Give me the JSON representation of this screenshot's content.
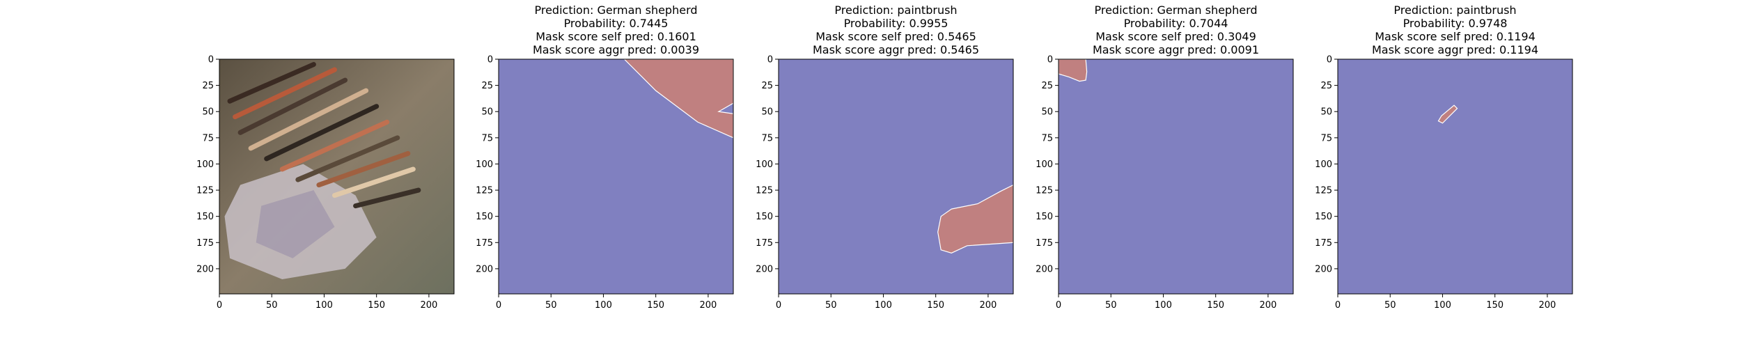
{
  "colors": {
    "background_mask": "#8080c0",
    "foreground_mask": "#c08080",
    "axis": "#000000"
  },
  "chart_data": [
    {
      "type": "image",
      "content": "photo of paintbrushes on crumpled paper with a spray can",
      "title_lines": [],
      "xticks": [
        0,
        50,
        100,
        150,
        200
      ],
      "yticks": [
        0,
        25,
        50,
        75,
        100,
        125,
        150,
        175,
        200
      ],
      "xlim": [
        0,
        224
      ],
      "ylim": [
        224,
        0
      ]
    },
    {
      "type": "heatmap",
      "title_lines": [
        "Prediction: German shepherd",
        "Probability: 0.7445",
        "Mask score self pred: 0.1601",
        "Mask score aggr pred: 0.0039"
      ],
      "xticks": [
        0,
        50,
        100,
        150,
        200
      ],
      "yticks": [
        0,
        25,
        50,
        75,
        100,
        125,
        150,
        175,
        200
      ],
      "xlim": [
        0,
        224
      ],
      "ylim": [
        224,
        0
      ],
      "mask_regions": [
        [
          [
            120,
            0
          ],
          [
            224,
            0
          ],
          [
            224,
            42
          ],
          [
            210,
            50
          ],
          [
            224,
            52
          ],
          [
            224,
            75
          ],
          [
            190,
            60
          ],
          [
            150,
            30
          ]
        ]
      ]
    },
    {
      "type": "heatmap",
      "title_lines": [
        "Prediction: paintbrush",
        "Probability: 0.9955",
        "Mask score self pred: 0.5465",
        "Mask score aggr pred: 0.5465"
      ],
      "xticks": [
        0,
        50,
        100,
        150,
        200
      ],
      "yticks": [
        0,
        25,
        50,
        75,
        100,
        125,
        150,
        175,
        200
      ],
      "xlim": [
        0,
        224
      ],
      "ylim": [
        224,
        0
      ],
      "mask_regions": [
        [
          [
            165,
            143
          ],
          [
            190,
            138
          ],
          [
            212,
            126
          ],
          [
            224,
            120
          ],
          [
            224,
            175
          ],
          [
            210,
            176
          ],
          [
            180,
            178
          ],
          [
            165,
            185
          ],
          [
            155,
            182
          ],
          [
            152,
            165
          ],
          [
            155,
            150
          ]
        ]
      ]
    },
    {
      "type": "heatmap",
      "title_lines": [
        "Prediction: German shepherd",
        "Probability: 0.7044",
        "Mask score self pred: 0.3049",
        "Mask score aggr pred: 0.0091"
      ],
      "xticks": [
        0,
        50,
        100,
        150,
        200
      ],
      "yticks": [
        0,
        25,
        50,
        75,
        100,
        125,
        150,
        175,
        200
      ],
      "xlim": [
        0,
        224
      ],
      "ylim": [
        224,
        0
      ],
      "mask_regions": [
        [
          [
            0,
            0
          ],
          [
            26,
            0
          ],
          [
            27,
            12
          ],
          [
            26,
            20
          ],
          [
            20,
            21
          ],
          [
            10,
            17
          ],
          [
            0,
            14
          ]
        ]
      ]
    },
    {
      "type": "heatmap",
      "title_lines": [
        "Prediction: paintbrush",
        "Probability: 0.9748",
        "Mask score self pred: 0.1194",
        "Mask score aggr pred: 0.1194"
      ],
      "xticks": [
        0,
        50,
        100,
        150,
        200
      ],
      "yticks": [
        0,
        25,
        50,
        75,
        100,
        125,
        150,
        175,
        200
      ],
      "xlim": [
        0,
        224
      ],
      "ylim": [
        224,
        0
      ],
      "mask_regions": [
        [
          [
            111,
            44
          ],
          [
            114,
            47
          ],
          [
            103,
            58
          ],
          [
            100,
            61
          ],
          [
            96,
            59
          ],
          [
            99,
            54
          ]
        ]
      ]
    }
  ]
}
